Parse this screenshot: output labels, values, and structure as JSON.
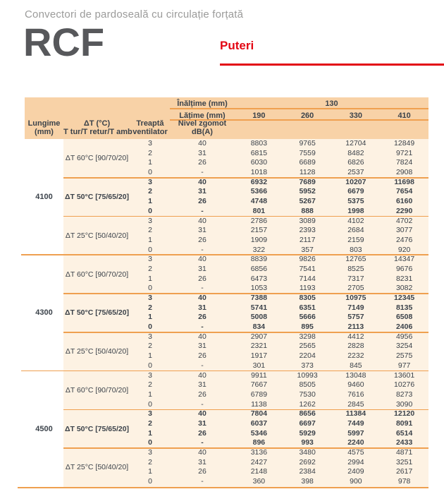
{
  "header": {
    "subtitle": "Convectori de pardoseală cu circulație forțată",
    "product_code": "RCF",
    "section_title": "Puteri"
  },
  "colors": {
    "accent_red": "#e30613",
    "header_bg": "#f8d2a7",
    "row_bg": "#fdf2e3",
    "line_orange": "#efa050",
    "text": "#3b424a"
  },
  "table": {
    "corner": {
      "lungime": [
        "Lungime",
        "(mm)"
      ],
      "dt": [
        "ΔT (°C)",
        "T tur/T retur/T amb"
      ],
      "treapta": [
        "Treaptă",
        "ventilator"
      ],
      "zgomot": [
        "Nivel zgomot",
        "dB(A)"
      ]
    },
    "inaltime_label": "Înălțime (mm)",
    "inaltime_value": "130",
    "latime_label": "Lățime (mm)",
    "latime_values": [
      "190",
      "260",
      "330",
      "410"
    ],
    "groups": [
      {
        "lungime": "4100",
        "blocks": [
          {
            "dt": "ΔT 60°C [90/70/20]",
            "highlight": false,
            "rows": [
              {
                "treapta": "3",
                "zgomot": "40",
                "values": [
                  8803,
                  9765,
                  12704,
                  12849
                ]
              },
              {
                "treapta": "2",
                "zgomot": "31",
                "values": [
                  6815,
                  7559,
                  8482,
                  9721
                ]
              },
              {
                "treapta": "1",
                "zgomot": "26",
                "values": [
                  6030,
                  6689,
                  6826,
                  7824
                ]
              },
              {
                "treapta": "0",
                "zgomot": "-",
                "values": [
                  1018,
                  1128,
                  2537,
                  2908
                ]
              }
            ]
          },
          {
            "dt": "ΔT 50°C [75/65/20]",
            "highlight": true,
            "rows": [
              {
                "treapta": "3",
                "zgomot": "40",
                "values": [
                  6932,
                  7689,
                  10207,
                  11698
                ]
              },
              {
                "treapta": "2",
                "zgomot": "31",
                "values": [
                  5366,
                  5952,
                  6679,
                  7654
                ]
              },
              {
                "treapta": "1",
                "zgomot": "26",
                "values": [
                  4748,
                  5267,
                  5375,
                  6160
                ]
              },
              {
                "treapta": "0",
                "zgomot": "-",
                "values": [
                  801,
                  888,
                  1998,
                  2290
                ]
              }
            ]
          },
          {
            "dt": "ΔT 25°C [50/40/20]",
            "highlight": false,
            "rows": [
              {
                "treapta": "3",
                "zgomot": "40",
                "values": [
                  2786,
                  3089,
                  4102,
                  4702
                ]
              },
              {
                "treapta": "2",
                "zgomot": "31",
                "values": [
                  2157,
                  2393,
                  2684,
                  3077
                ]
              },
              {
                "treapta": "1",
                "zgomot": "26",
                "values": [
                  1909,
                  2117,
                  2159,
                  2476
                ]
              },
              {
                "treapta": "0",
                "zgomot": "-",
                "values": [
                  322,
                  357,
                  803,
                  920
                ]
              }
            ]
          }
        ]
      },
      {
        "lungime": "4300",
        "blocks": [
          {
            "dt": "ΔT 60°C [90/70/20]",
            "highlight": false,
            "rows": [
              {
                "treapta": "3",
                "zgomot": "40",
                "values": [
                  8839,
                  9826,
                  12765,
                  14347
                ]
              },
              {
                "treapta": "2",
                "zgomot": "31",
                "values": [
                  6856,
                  7541,
                  8525,
                  9676
                ]
              },
              {
                "treapta": "1",
                "zgomot": "26",
                "values": [
                  6473,
                  7144,
                  7317,
                  8231
                ]
              },
              {
                "treapta": "0",
                "zgomot": "-",
                "values": [
                  1053,
                  1193,
                  2705,
                  3082
                ]
              }
            ]
          },
          {
            "dt": "ΔT 50°C [75/65/20]",
            "highlight": true,
            "rows": [
              {
                "treapta": "3",
                "zgomot": "40",
                "values": [
                  7388,
                  8305,
                  10975,
                  12345
                ]
              },
              {
                "treapta": "2",
                "zgomot": "31",
                "values": [
                  5741,
                  6351,
                  7149,
                  8135
                ]
              },
              {
                "treapta": "1",
                "zgomot": "26",
                "values": [
                  5008,
                  5666,
                  5757,
                  6508
                ]
              },
              {
                "treapta": "0",
                "zgomot": "-",
                "values": [
                  834,
                  895,
                  2113,
                  2406
                ]
              }
            ]
          },
          {
            "dt": "ΔT 25°C [50/40/20]",
            "highlight": false,
            "rows": [
              {
                "treapta": "3",
                "zgomot": "40",
                "values": [
                  2907,
                  3298,
                  4412,
                  4956
                ]
              },
              {
                "treapta": "2",
                "zgomot": "31",
                "values": [
                  2321,
                  2565,
                  2828,
                  3254
                ]
              },
              {
                "treapta": "1",
                "zgomot": "26",
                "values": [
                  1917,
                  2204,
                  2232,
                  2575
                ]
              },
              {
                "treapta": "0",
                "zgomot": "-",
                "values": [
                  301,
                  373,
                  845,
                  977
                ]
              }
            ]
          }
        ]
      },
      {
        "lungime": "4500",
        "blocks": [
          {
            "dt": "ΔT 60°C [90/70/20]",
            "highlight": false,
            "rows": [
              {
                "treapta": "3",
                "zgomot": "40",
                "values": [
                  9911,
                  10993,
                  13048,
                  13601
                ]
              },
              {
                "treapta": "2",
                "zgomot": "31",
                "values": [
                  7667,
                  8505,
                  9460,
                  10276
                ]
              },
              {
                "treapta": "1",
                "zgomot": "26",
                "values": [
                  6789,
                  7530,
                  7616,
                  8273
                ]
              },
              {
                "treapta": "0",
                "zgomot": "-",
                "values": [
                  1138,
                  1262,
                  2845,
                  3090
                ]
              }
            ]
          },
          {
            "dt": "ΔT 50°C [75/65/20]",
            "highlight": true,
            "rows": [
              {
                "treapta": "3",
                "zgomot": "40",
                "values": [
                  7804,
                  8656,
                  11384,
                  12120
                ]
              },
              {
                "treapta": "2",
                "zgomot": "31",
                "values": [
                  6037,
                  6697,
                  7449,
                  8091
                ]
              },
              {
                "treapta": "1",
                "zgomot": "26",
                "values": [
                  5346,
                  5929,
                  5997,
                  6514
                ]
              },
              {
                "treapta": "0",
                "zgomot": "-",
                "values": [
                  896,
                  993,
                  2240,
                  2433
                ]
              }
            ]
          },
          {
            "dt": "ΔT 25°C [50/40/20]",
            "highlight": false,
            "rows": [
              {
                "treapta": "3",
                "zgomot": "40",
                "values": [
                  3136,
                  3480,
                  4575,
                  4871
                ]
              },
              {
                "treapta": "2",
                "zgomot": "31",
                "values": [
                  2427,
                  2692,
                  2994,
                  3251
                ]
              },
              {
                "treapta": "1",
                "zgomot": "26",
                "values": [
                  2148,
                  2384,
                  2409,
                  2617
                ]
              },
              {
                "treapta": "0",
                "zgomot": "-",
                "values": [
                  360,
                  398,
                  900,
                  978
                ]
              }
            ]
          }
        ]
      }
    ]
  }
}
